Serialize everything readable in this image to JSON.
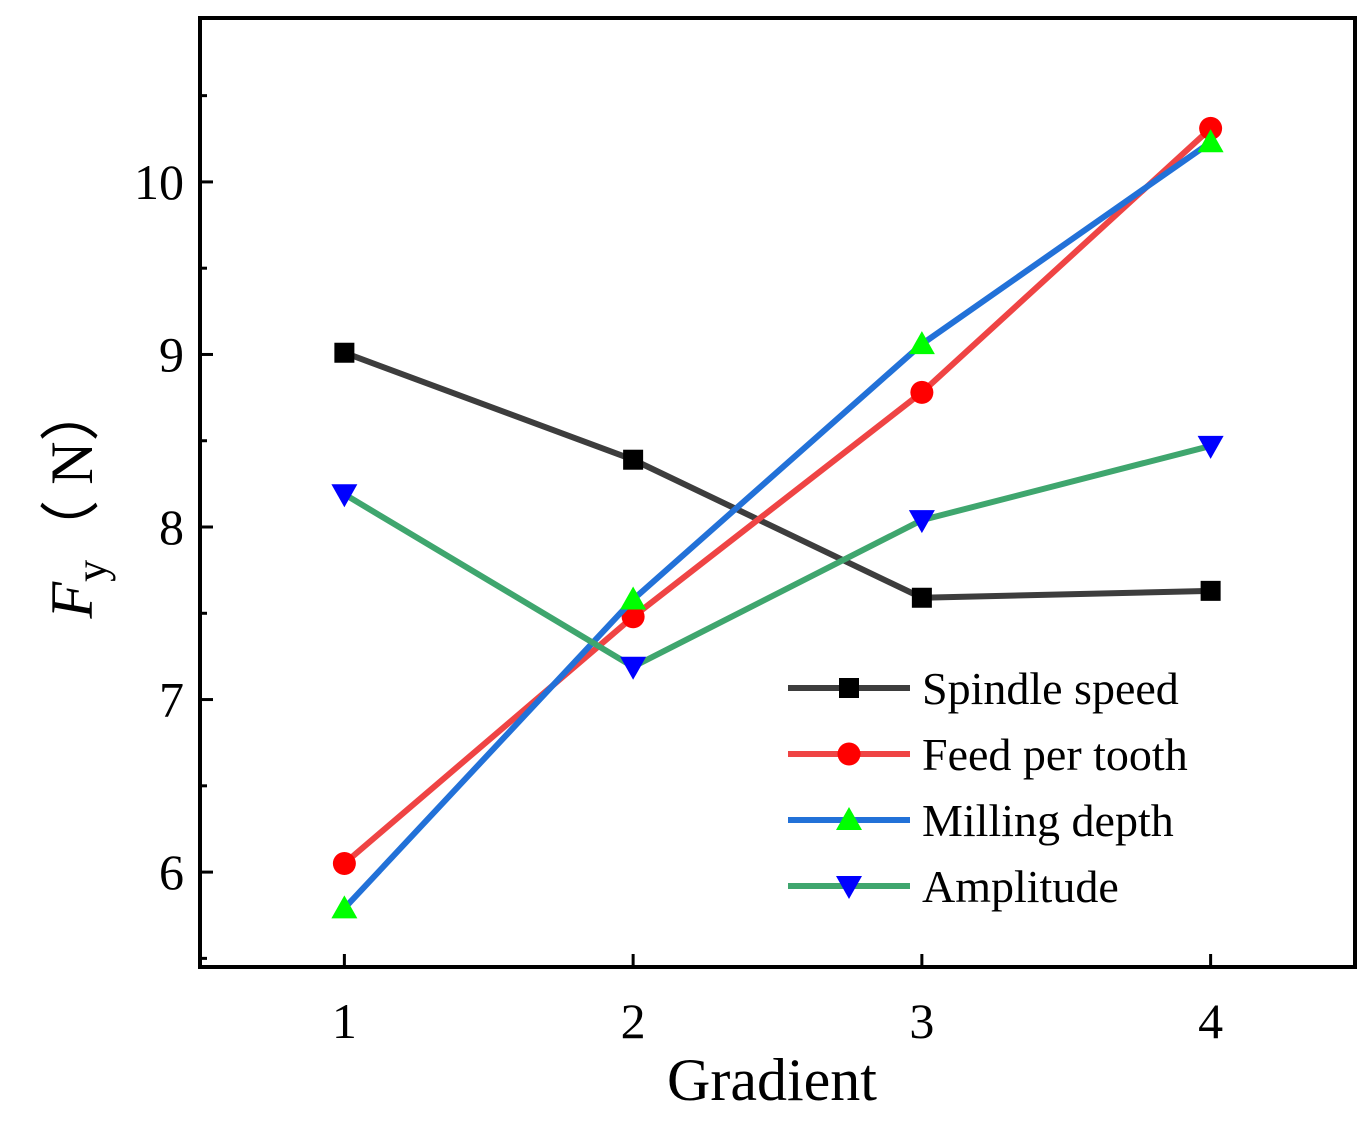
{
  "chart_data": {
    "type": "line",
    "x": [
      1,
      2,
      3,
      4
    ],
    "xlabel": "Gradient",
    "ylabel": {
      "main": "F",
      "sub": "y",
      "unit": "（ N）"
    },
    "xlim": [
      0.5,
      4.5
    ],
    "ylim": [
      5.45,
      10.95
    ],
    "xticks": [
      1,
      2,
      3,
      4
    ],
    "yticks": [
      6,
      7,
      8,
      9,
      10
    ],
    "grid": false,
    "legend_position": "bottom-right",
    "series": [
      {
        "name": "Spindle speed",
        "values": [
          9.01,
          8.39,
          7.59,
          7.63
        ],
        "line_color": "#3d3d3d",
        "marker_color": "#000000",
        "marker": "square"
      },
      {
        "name": "Feed per tooth",
        "values": [
          6.05,
          7.48,
          8.78,
          10.31
        ],
        "line_color": "#ef4444",
        "marker_color": "#ff0000",
        "marker": "circle"
      },
      {
        "name": "Milling depth",
        "values": [
          5.79,
          7.58,
          9.06,
          10.23
        ],
        "line_color": "#2271d8",
        "marker_color": "#00ff00",
        "marker": "triangle-up"
      },
      {
        "name": "Amplitude",
        "values": [
          8.19,
          7.19,
          8.04,
          8.47
        ],
        "line_color": "#3fa66e",
        "marker_color": "#0000ff",
        "marker": "triangle-down"
      }
    ]
  }
}
